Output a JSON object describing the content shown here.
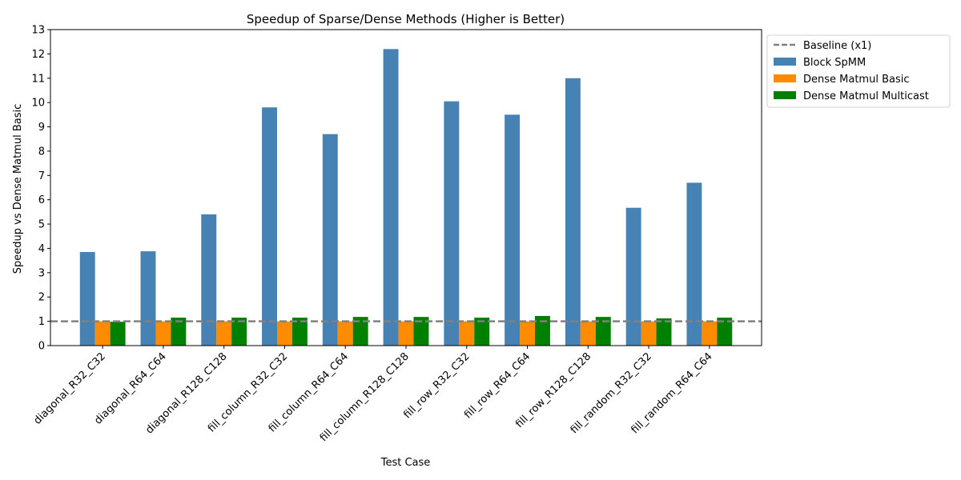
{
  "chart_data": {
    "type": "bar",
    "title": "Speedup of Sparse/Dense Methods (Higher is Better)",
    "xlabel": "Test Case",
    "ylabel": "Speedup vs Dense Matmul Basic",
    "ylim": [
      0,
      13
    ],
    "yticks": [
      0,
      1,
      2,
      3,
      4,
      5,
      6,
      7,
      8,
      9,
      10,
      11,
      12,
      13
    ],
    "categories": [
      "diagonal_R32_C32",
      "diagonal_R64_C64",
      "diagonal_R128_C128",
      "fill_column_R32_C32",
      "fill_column_R64_C64",
      "fill_column_R128_C128",
      "fill_row_R32_C32",
      "fill_row_R64_C64",
      "fill_row_R128_C128",
      "fill_random_R32_C32",
      "fill_random_R64_C64"
    ],
    "series": [
      {
        "name": "Block SpMM",
        "color": "#4682b4",
        "values": [
          3.85,
          3.88,
          5.4,
          9.8,
          8.7,
          12.2,
          10.05,
          9.5,
          11.0,
          5.67,
          6.7
        ]
      },
      {
        "name": "Dense Matmul Basic",
        "color": "#ff8c00",
        "values": [
          1.0,
          1.0,
          1.0,
          1.0,
          1.0,
          1.0,
          1.0,
          1.0,
          1.0,
          1.0,
          1.0
        ]
      },
      {
        "name": "Dense Matmul Multicast",
        "color": "#008000",
        "values": [
          0.98,
          1.15,
          1.15,
          1.15,
          1.18,
          1.18,
          1.15,
          1.22,
          1.18,
          1.12,
          1.15
        ]
      }
    ],
    "baseline": {
      "name": "Baseline (x1)",
      "value": 1,
      "color": "#808080",
      "style": "dashed"
    },
    "legend": "outside-top-right",
    "grid": false
  }
}
